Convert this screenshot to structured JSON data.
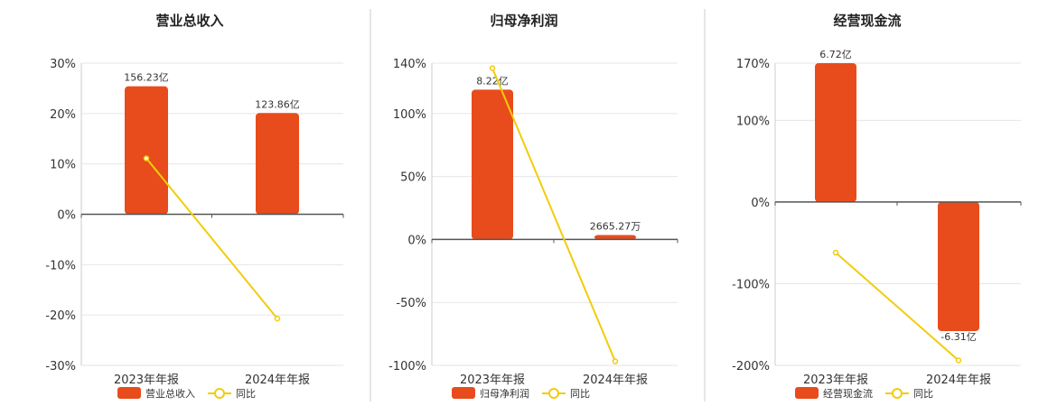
{
  "colors": {
    "bar": "#e84c1c",
    "line": "#f2cc0c",
    "axis": "#555555",
    "grid": "#e6e6e6",
    "divider": "#cccccc"
  },
  "legend": {
    "bar_label": "营业总收入",
    "line_label": "同比"
  },
  "chart_data": [
    {
      "type": "bar",
      "title": "营业总收入",
      "categories": [
        "2023年年报",
        "2024年年报"
      ],
      "ylim": [
        -30,
        30
      ],
      "yticks": [
        "30%",
        "20%",
        "10%",
        "0%",
        "-10%",
        "-20%",
        "-30%"
      ],
      "series": [
        {
          "name": "营业总收入",
          "type": "bar",
          "values": [
            25.4,
            20.1
          ],
          "labels": [
            "156.23亿",
            "123.86亿"
          ]
        },
        {
          "name": "同比",
          "type": "line",
          "values": [
            11.1,
            -20.7
          ]
        }
      ]
    },
    {
      "type": "bar",
      "title": "归母净利润",
      "categories": [
        "2023年年报",
        "2024年年报"
      ],
      "ylim": [
        -100,
        140
      ],
      "yticks": [
        "140%",
        "100%",
        "50%",
        "0%",
        "-50%",
        "-100%"
      ],
      "series": [
        {
          "name": "归母净利润",
          "type": "bar",
          "values": [
            119,
            3.5
          ],
          "labels": [
            "8.22亿",
            "2665.27万"
          ]
        },
        {
          "name": "同比",
          "type": "line",
          "values": [
            136,
            -96.8
          ]
        }
      ]
    },
    {
      "type": "bar",
      "title": "经营现金流",
      "categories": [
        "2023年年报",
        "2024年年报"
      ],
      "ylim": [
        -200,
        170
      ],
      "yticks": [
        "170%",
        "100%",
        "0%",
        "-100%",
        "-200%"
      ],
      "series": [
        {
          "name": "经营现金流",
          "type": "bar",
          "values": [
            170,
            -158
          ],
          "labels": [
            "6.72亿",
            "-6.31亿"
          ]
        },
        {
          "name": "同比",
          "type": "line",
          "values": [
            -62,
            -193.9
          ]
        }
      ]
    }
  ]
}
